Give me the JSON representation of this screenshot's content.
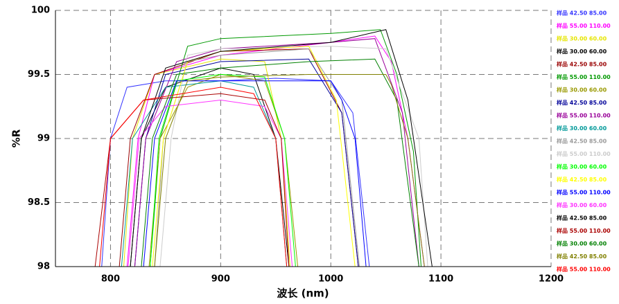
{
  "chart_data": {
    "type": "line",
    "x_label": "波长 (nm)",
    "y_label": "%R",
    "xlim": [
      750,
      1200
    ],
    "ylim": [
      98,
      100
    ],
    "xticks": [
      800,
      900,
      1000,
      1100,
      1200
    ],
    "yticks": [
      98,
      98.5,
      99,
      99.5,
      100
    ],
    "grid": true,
    "legend": "right",
    "series": [
      {
        "name": "样品 42.50 85.00",
        "color": "#3333ff",
        "x": [
          792,
          800,
          815,
          850,
          900,
          950,
          1000,
          1020,
          1035
        ],
        "values": [
          98,
          99,
          99.4,
          99.45,
          99.45,
          99.47,
          99.45,
          99.2,
          98
        ]
      },
      {
        "name": "样品 55.00 110.00",
        "color": "#ff00ff",
        "x": [
          815,
          825,
          840,
          900,
          1000,
          1040,
          1055,
          1070,
          1085
        ],
        "values": [
          98,
          99,
          99.5,
          99.65,
          99.75,
          99.8,
          99.6,
          99.0,
          98
        ]
      },
      {
        "name": "样品 30.00 60.00",
        "color": "#e6e600",
        "x": [
          812,
          820,
          840,
          900,
          940,
          955,
          963
        ],
        "values": [
          98,
          99,
          99.5,
          99.62,
          99.6,
          99.0,
          98
        ]
      },
      {
        "name": "样品 30.00 60.00",
        "color": "#000000",
        "x": [
          818,
          828,
          850,
          900,
          930,
          950,
          962
        ],
        "values": [
          98,
          99,
          99.4,
          99.55,
          99.5,
          99.0,
          98
        ]
      },
      {
        "name": "样品 42.50 85.00",
        "color": "#990000",
        "x": [
          808,
          818,
          840,
          900,
          980,
          1010,
          1025
        ],
        "values": [
          98,
          99,
          99.5,
          99.68,
          99.7,
          99.2,
          98
        ]
      },
      {
        "name": "样品 55.00 110.00",
        "color": "#009900",
        "x": [
          836,
          845,
          870,
          900,
          1000,
          1045,
          1060,
          1075,
          1082
        ],
        "values": [
          98,
          99,
          99.72,
          99.78,
          99.82,
          99.85,
          99.5,
          98.9,
          98
        ]
      },
      {
        "name": "样品 30.00 60.00",
        "color": "#999900",
        "x": [
          835,
          845,
          870,
          900,
          940,
          958,
          970
        ],
        "values": [
          98,
          99,
          99.4,
          99.5,
          99.45,
          99.0,
          98
        ]
      },
      {
        "name": "样品 42.50 85.00",
        "color": "#000099",
        "x": [
          822,
          832,
          850,
          900,
          980,
          1010,
          1025
        ],
        "values": [
          98,
          99,
          99.5,
          99.6,
          99.62,
          99.2,
          98
        ]
      },
      {
        "name": "样品 55.00 110.00",
        "color": "#990099",
        "x": [
          822,
          832,
          860,
          900,
          1000,
          1040,
          1065,
          1080
        ],
        "values": [
          98,
          99,
          99.6,
          99.7,
          99.75,
          99.78,
          99.2,
          98
        ]
      },
      {
        "name": "样品 30.00 60.00",
        "color": "#009999",
        "x": [
          810,
          820,
          850,
          900,
          930,
          950,
          960
        ],
        "values": [
          98,
          99,
          99.4,
          99.45,
          99.4,
          99.0,
          98
        ]
      },
      {
        "name": "样品 42.50 85.00",
        "color": "#999999",
        "x": [
          840,
          848,
          870,
          900,
          980,
          1010,
          1026
        ],
        "values": [
          98,
          99,
          99.6,
          99.65,
          99.7,
          99.3,
          98
        ]
      },
      {
        "name": "样品 55.00 110.00",
        "color": "#cccccc",
        "x": [
          845,
          855,
          870,
          900,
          1000,
          1050,
          1080,
          1088
        ],
        "values": [
          98,
          99,
          99.65,
          99.7,
          99.72,
          99.7,
          99.0,
          98
        ]
      },
      {
        "name": "样品 30.00 60.00",
        "color": "#00ff00",
        "x": [
          836,
          844,
          860,
          900,
          940,
          958,
          968
        ],
        "values": [
          98,
          99,
          99.45,
          99.5,
          99.48,
          99.0,
          98
        ]
      },
      {
        "name": "样品 42.50 85.00",
        "color": "#ffff00",
        "x": [
          838,
          848,
          870,
          900,
          980,
          1005,
          1022
        ],
        "values": [
          98,
          99,
          99.6,
          99.68,
          99.72,
          99.3,
          98
        ]
      },
      {
        "name": "样品 55.00 110.00",
        "color": "#0000ff",
        "x": [
          830,
          840,
          860,
          900,
          1000,
          1010,
          1022,
          1032
        ],
        "values": [
          98,
          99,
          99.45,
          99.45,
          99.45,
          99.3,
          99.0,
          98
        ]
      },
      {
        "name": "样品 30.00 60.00",
        "color": "#ff33ff",
        "x": [
          816,
          826,
          850,
          900,
          940,
          955,
          965
        ],
        "values": [
          98,
          99,
          99.25,
          99.3,
          99.25,
          99.0,
          98
        ]
      },
      {
        "name": "样品 42.50 85.00",
        "color": "#000000",
        "x": [
          818,
          828,
          850,
          900,
          1000,
          1050,
          1070,
          1092
        ],
        "values": [
          98,
          99,
          99.55,
          99.68,
          99.75,
          99.85,
          99.3,
          98
        ]
      },
      {
        "name": "样品 55.00 110.00",
        "color": "#aa0000",
        "x": [
          786,
          800,
          830,
          900,
          940,
          955,
          962
        ],
        "values": [
          98,
          99,
          99.3,
          99.35,
          99.3,
          99.0,
          98
        ]
      },
      {
        "name": "样品 30.00 60.00",
        "color": "#008000",
        "x": [
          828,
          838,
          860,
          900,
          980,
          1040,
          1060,
          1080
        ],
        "values": [
          98,
          99,
          99.5,
          99.55,
          99.6,
          99.62,
          99.3,
          98
        ]
      },
      {
        "name": "样品 42.50 85.00",
        "color": "#808000",
        "x": [
          840,
          850,
          870,
          900,
          980,
          1050,
          1055,
          1070,
          1085
        ],
        "values": [
          98,
          99,
          99.45,
          99.48,
          99.5,
          99.5,
          99.42,
          99.0,
          98
        ]
      },
      {
        "name": "样品 55.00 110.00",
        "color": "#ff0000",
        "x": [
          790,
          800,
          830,
          900,
          930,
          950,
          960
        ],
        "values": [
          98,
          99,
          99.3,
          99.4,
          99.35,
          99.0,
          98
        ]
      }
    ]
  }
}
